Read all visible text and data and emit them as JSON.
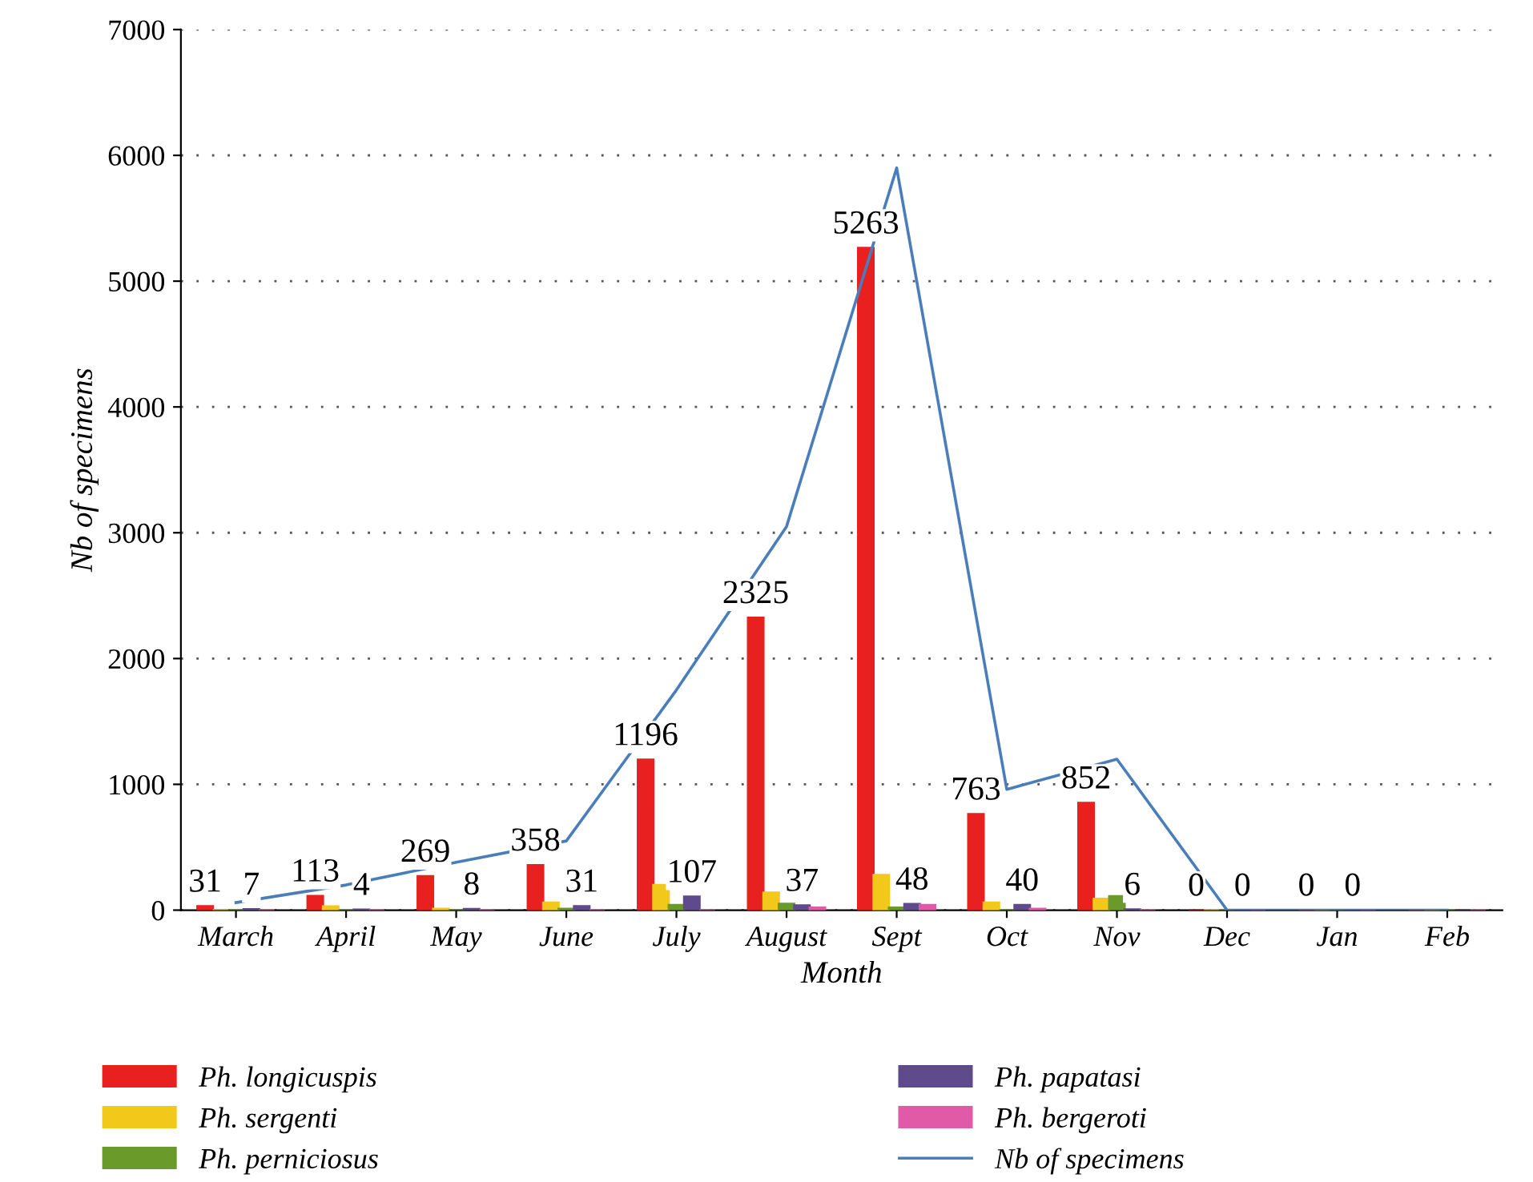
{
  "chart_data": {
    "type": "bar",
    "xlabel": "Month",
    "ylabel": "Nb of specimens",
    "categories": [
      "March",
      "April",
      "May",
      "June",
      "July",
      "August",
      "Sept",
      "Oct",
      "Nov",
      "Dec",
      "Jan",
      "Feb"
    ],
    "ylim": [
      0,
      7000
    ],
    "yticks": [
      0,
      1000,
      2000,
      3000,
      4000,
      5000,
      6000,
      7000
    ],
    "grid": "y",
    "legend": "bottom",
    "series": [
      {
        "name": "Ph. longicuspis",
        "color": "#e8201f",
        "values": [
          31,
          113,
          269,
          358,
          1196,
          2325,
          5263,
          763,
          852,
          0,
          0,
          0
        ],
        "value_labels": [
          "31",
          "113",
          "269",
          "358",
          "1196",
          "2325",
          "5263",
          "763",
          "852",
          "0",
          "0",
          null
        ]
      },
      {
        "name": "Ph. sergenti",
        "color": "#f2c81a",
        "values": [
          0,
          30,
          10,
          60,
          200,
          140,
          280,
          60,
          90,
          0,
          0,
          0
        ]
      },
      {
        "name": "Ph. perniciosus",
        "color": "#6a9a2a",
        "values": [
          0,
          0,
          0,
          10,
          40,
          50,
          20,
          0,
          110,
          0,
          0,
          0
        ]
      },
      {
        "name": "Ph. papatasi",
        "color": "#5f4a8b",
        "values": [
          7,
          4,
          8,
          31,
          107,
          37,
          48,
          40,
          6,
          0,
          0,
          0
        ],
        "value_labels": [
          "7",
          "4",
          "8",
          "31",
          "107",
          "37",
          "48",
          "40",
          "6",
          "0",
          "0",
          null
        ]
      },
      {
        "name": "Ph. bergeroti",
        "color": "#e05aa8",
        "values": [
          0,
          0,
          0,
          0,
          0,
          20,
          40,
          10,
          0,
          0,
          0,
          0
        ]
      },
      {
        "name": "Nb of specimens",
        "type": "line",
        "color": "#4a7ebb",
        "values": [
          60,
          200,
          380,
          550,
          1750,
          3050,
          5900,
          960,
          1200,
          0,
          0,
          0
        ]
      }
    ]
  }
}
